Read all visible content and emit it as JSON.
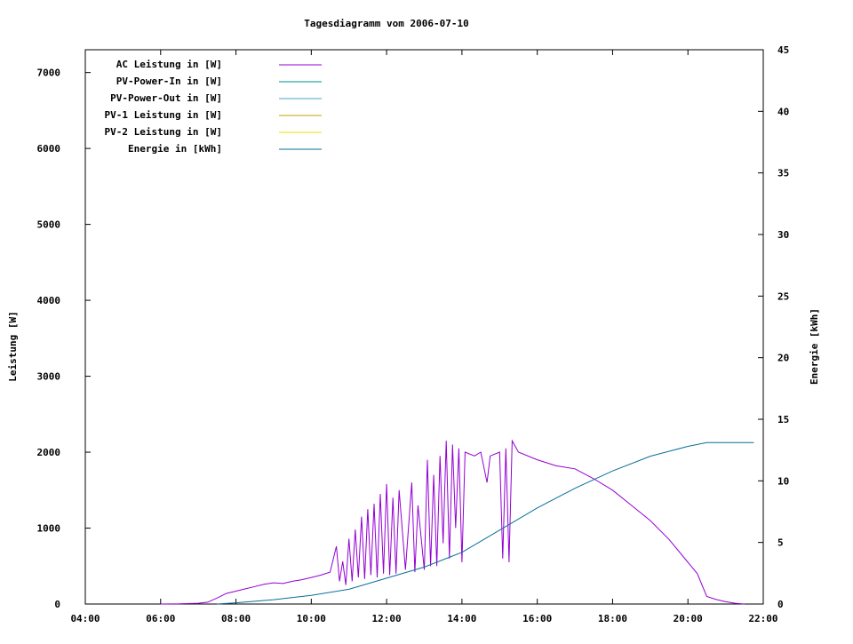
{
  "chart_data": {
    "type": "line",
    "title": "Tagesdiagramm vom 2006-07-10",
    "xlabel": "",
    "ylabel": "Leistung [W]",
    "y2label": "Energie [kWh]",
    "xlim": [
      "04:00",
      "22:00"
    ],
    "ylim": [
      0,
      7300
    ],
    "y2lim": [
      0,
      45
    ],
    "x_ticks": [
      "04:00",
      "06:00",
      "08:00",
      "10:00",
      "12:00",
      "14:00",
      "16:00",
      "18:00",
      "20:00",
      "22:00"
    ],
    "y_ticks": [
      0,
      1000,
      2000,
      3000,
      4000,
      5000,
      6000,
      7000
    ],
    "y2_ticks": [
      0,
      5,
      10,
      15,
      20,
      25,
      30,
      35,
      40,
      45
    ],
    "grid": false,
    "legend_position": "top-left",
    "series": [
      {
        "name": "AC Leistung in [W]",
        "axis": "left",
        "color": "#9400d3",
        "points": [
          [
            "06:00",
            0
          ],
          [
            "06:30",
            2
          ],
          [
            "07:00",
            10
          ],
          [
            "07:15",
            25
          ],
          [
            "07:30",
            80
          ],
          [
            "07:45",
            140
          ],
          [
            "08:00",
            170
          ],
          [
            "08:15",
            200
          ],
          [
            "08:30",
            230
          ],
          [
            "08:45",
            260
          ],
          [
            "09:00",
            280
          ],
          [
            "09:15",
            270
          ],
          [
            "09:30",
            300
          ],
          [
            "09:45",
            320
          ],
          [
            "10:00",
            350
          ],
          [
            "10:15",
            380
          ],
          [
            "10:30",
            420
          ],
          [
            "10:40",
            760
          ],
          [
            "10:45",
            300
          ],
          [
            "10:50",
            560
          ],
          [
            "10:55",
            250
          ],
          [
            "11:00",
            860
          ],
          [
            "11:05",
            300
          ],
          [
            "11:10",
            980
          ],
          [
            "11:15",
            350
          ],
          [
            "11:20",
            1150
          ],
          [
            "11:25",
            330
          ],
          [
            "11:30",
            1250
          ],
          [
            "11:35",
            380
          ],
          [
            "11:40",
            1320
          ],
          [
            "11:45",
            350
          ],
          [
            "11:50",
            1450
          ],
          [
            "11:55",
            400
          ],
          [
            "12:00",
            1580
          ],
          [
            "12:05",
            380
          ],
          [
            "12:10",
            1400
          ],
          [
            "12:15",
            400
          ],
          [
            "12:20",
            1500
          ],
          [
            "12:30",
            450
          ],
          [
            "12:40",
            1600
          ],
          [
            "12:45",
            420
          ],
          [
            "12:50",
            1300
          ],
          [
            "13:00",
            450
          ],
          [
            "13:05",
            1900
          ],
          [
            "13:10",
            500
          ],
          [
            "13:15",
            1700
          ],
          [
            "13:20",
            500
          ],
          [
            "13:25",
            1950
          ],
          [
            "13:30",
            800
          ],
          [
            "13:35",
            2150
          ],
          [
            "13:40",
            600
          ],
          [
            "13:45",
            2100
          ],
          [
            "13:50",
            1000
          ],
          [
            "13:55",
            2050
          ],
          [
            "14:00",
            550
          ],
          [
            "14:05",
            2000
          ],
          [
            "14:20",
            1950
          ],
          [
            "14:30",
            2000
          ],
          [
            "14:40",
            1600
          ],
          [
            "14:45",
            1950
          ],
          [
            "15:00",
            2000
          ],
          [
            "15:05",
            600
          ],
          [
            "15:10",
            2050
          ],
          [
            "15:15",
            550
          ],
          [
            "15:20",
            2150
          ],
          [
            "15:30",
            2000
          ],
          [
            "16:00",
            1900
          ],
          [
            "16:30",
            1820
          ],
          [
            "17:00",
            1780
          ],
          [
            "17:30",
            1650
          ],
          [
            "18:00",
            1500
          ],
          [
            "18:30",
            1300
          ],
          [
            "19:00",
            1100
          ],
          [
            "19:30",
            850
          ],
          [
            "20:00",
            550
          ],
          [
            "20:15",
            400
          ],
          [
            "20:30",
            100
          ],
          [
            "20:45",
            60
          ],
          [
            "21:00",
            30
          ],
          [
            "21:15",
            10
          ],
          [
            "21:30",
            0
          ]
        ]
      },
      {
        "name": "PV-Power-In in [W]",
        "axis": "left",
        "color": "#008b8b",
        "points": []
      },
      {
        "name": "PV-Power-Out in [W]",
        "axis": "left",
        "color": "#4aa3c8",
        "points": []
      },
      {
        "name": "PV-1 Leistung in [W]",
        "axis": "left",
        "color": "#c8a000",
        "points": []
      },
      {
        "name": "PV-2 Leistung in [W]",
        "axis": "left",
        "color": "#e8e000",
        "points": []
      },
      {
        "name": "Energie in [kWh]",
        "axis": "right",
        "color": "#0a6e9a",
        "points": [
          [
            "07:30",
            0
          ],
          [
            "08:00",
            0.1
          ],
          [
            "09:00",
            0.35
          ],
          [
            "10:00",
            0.7
          ],
          [
            "11:00",
            1.2
          ],
          [
            "12:00",
            2.1
          ],
          [
            "13:00",
            3.0
          ],
          [
            "14:00",
            4.2
          ],
          [
            "15:00",
            6.0
          ],
          [
            "16:00",
            7.8
          ],
          [
            "17:00",
            9.4
          ],
          [
            "18:00",
            10.8
          ],
          [
            "19:00",
            12.0
          ],
          [
            "20:00",
            12.8
          ],
          [
            "20:30",
            13.1
          ],
          [
            "21:45",
            13.1
          ]
        ]
      }
    ]
  }
}
